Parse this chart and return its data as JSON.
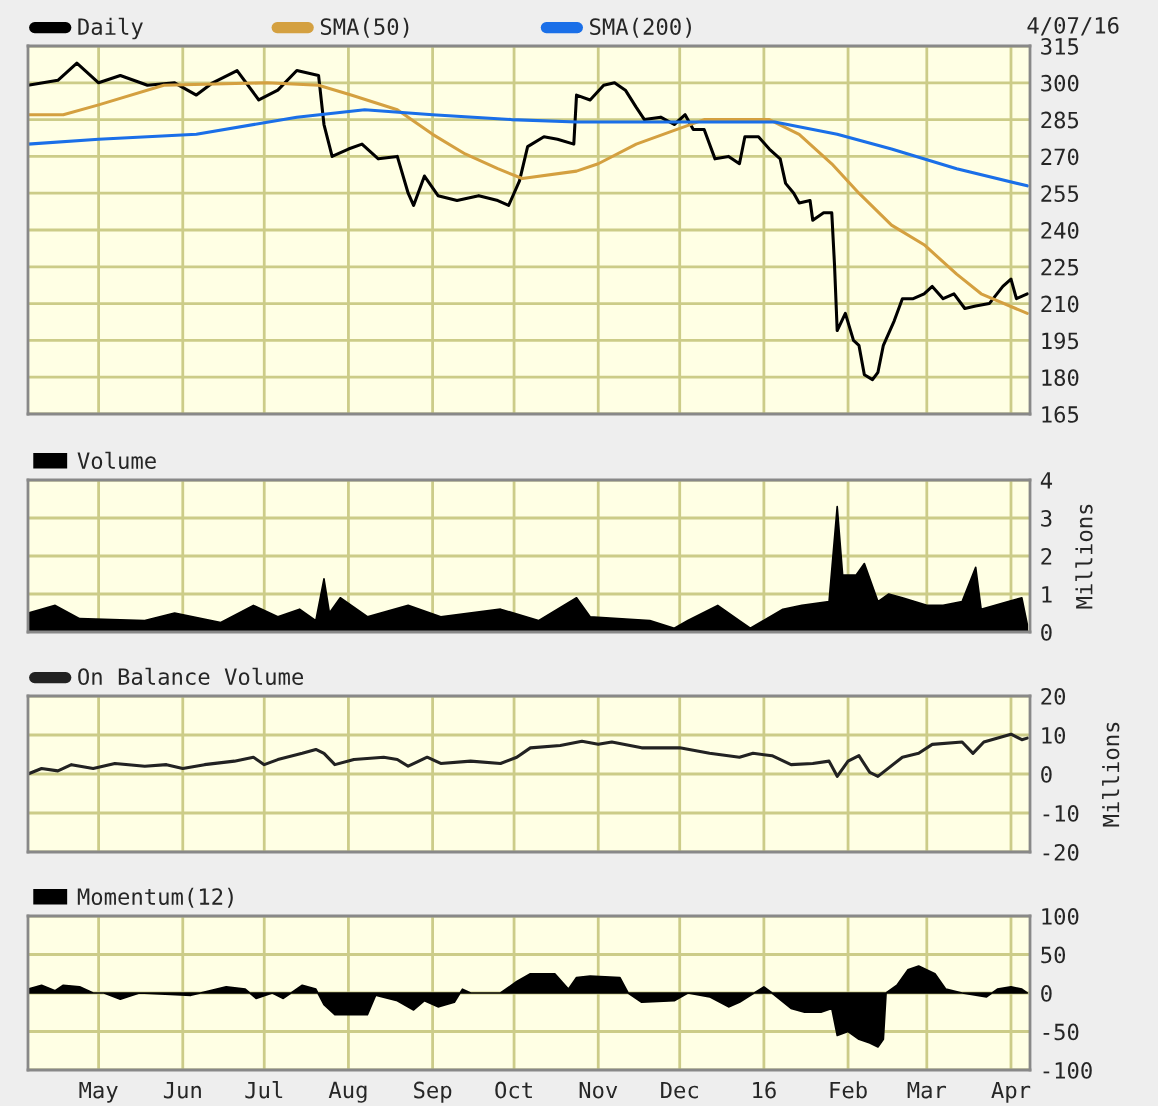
{
  "chart_data": [
    {
      "type": "line",
      "legend": "top left",
      "grid": true,
      "tick_labels": "y",
      "annotations": [
        "4/07/16"
      ],
      "xlim": [
        "2015-04-05",
        "2016-04-08"
      ],
      "xticks": [
        {
          "value": "2015-05-01",
          "label": null
        },
        {
          "value": "2015-06-01",
          "label": null
        },
        {
          "value": "2015-07-01",
          "label": null
        },
        {
          "value": "2015-08-01",
          "label": null
        },
        {
          "value": "2015-09-01",
          "label": null
        },
        {
          "value": "2015-10-01",
          "label": null
        },
        {
          "value": "2015-11-01",
          "label": null
        },
        {
          "value": "2015-12-01",
          "label": null
        },
        {
          "value": "2016-01-01",
          "label": null
        },
        {
          "value": "2016-02-01",
          "label": null
        },
        {
          "value": "2016-03-01",
          "label": null
        },
        {
          "value": "2016-04-01",
          "label": null
        }
      ],
      "ylim": [
        165,
        315
      ],
      "yticks": [
        165,
        180,
        195,
        210,
        225,
        240,
        255,
        270,
        285,
        300,
        315
      ],
      "series": [
        {
          "name": "Daily",
          "color": "#000000",
          "x": [
            "2015-04-05",
            "2015-04-16",
            "2015-04-23",
            "2015-05-01",
            "2015-05-09",
            "2015-05-19",
            "2015-05-29",
            "2015-06-06",
            "2015-06-12",
            "2015-06-21",
            "2015-06-29",
            "2015-07-06",
            "2015-07-13",
            "2015-07-21",
            "2015-07-23",
            "2015-07-26",
            "2015-08-01",
            "2015-08-06",
            "2015-08-12",
            "2015-08-19",
            "2015-08-23",
            "2015-08-25",
            "2015-08-29",
            "2015-09-03",
            "2015-09-10",
            "2015-09-18",
            "2015-09-25",
            "2015-09-29",
            "2015-10-03",
            "2015-10-06",
            "2015-10-12",
            "2015-10-17",
            "2015-10-23",
            "2015-10-24",
            "2015-10-29",
            "2015-11-03",
            "2015-11-07",
            "2015-11-11",
            "2015-11-15",
            "2015-11-18",
            "2015-11-24",
            "2015-11-29",
            "2015-12-03",
            "2015-12-06",
            "2015-12-10",
            "2015-12-14",
            "2015-12-19",
            "2015-12-23",
            "2015-12-25",
            "2015-12-30",
            "2016-01-03",
            "2016-01-07",
            "2016-01-09",
            "2016-01-12",
            "2016-01-14",
            "2016-01-18",
            "2016-01-19",
            "2016-01-23",
            "2016-01-26",
            "2016-01-27",
            "2016-01-28",
            "2016-01-31",
            "2016-02-03",
            "2016-02-05",
            "2016-02-07",
            "2016-02-10",
            "2016-02-12",
            "2016-02-14",
            "2016-02-18",
            "2016-02-21",
            "2016-02-25",
            "2016-02-29",
            "2016-03-03",
            "2016-03-07",
            "2016-03-11",
            "2016-03-15",
            "2016-03-19",
            "2016-03-24",
            "2016-03-29",
            "2016-04-01",
            "2016-04-03",
            "2016-04-07"
          ],
          "values": [
            299,
            301,
            308,
            300,
            303,
            299,
            300,
            295,
            300,
            305,
            293,
            297,
            305,
            303,
            283,
            270,
            273,
            275,
            269,
            270,
            255,
            250,
            262,
            254,
            252,
            254,
            252,
            250,
            260,
            274,
            278,
            277,
            275,
            295,
            293,
            299,
            300,
            297,
            290,
            285,
            286,
            283,
            287,
            281,
            281,
            269,
            270,
            267,
            278,
            278,
            273,
            269,
            259,
            255,
            251,
            252,
            244,
            247,
            247,
            226,
            199,
            206,
            195,
            193,
            181,
            179,
            182,
            193,
            203,
            212,
            212,
            214,
            217,
            212,
            214,
            208,
            209,
            210,
            217,
            220,
            212,
            214
          ]
        },
        {
          "name": "SMA(50)",
          "color": "#d4a040",
          "x": [
            "2015-04-05",
            "2015-04-18",
            "2015-05-01",
            "2015-05-25",
            "2015-07-02",
            "2015-07-21",
            "2015-08-02",
            "2015-08-19",
            "2015-09-01",
            "2015-09-13",
            "2015-09-25",
            "2015-10-04",
            "2015-10-24",
            "2015-11-01",
            "2015-11-15",
            "2015-11-30",
            "2015-12-10",
            "2015-12-21",
            "2016-01-03",
            "2016-01-14",
            "2016-01-26",
            "2016-02-05",
            "2016-02-17",
            "2016-02-29",
            "2016-03-12",
            "2016-03-21",
            "2016-04-07"
          ],
          "values": [
            287,
            287,
            291,
            299,
            300,
            299,
            295,
            289,
            279,
            271,
            265,
            261,
            264,
            267,
            275,
            281,
            285,
            285,
            285,
            279,
            267,
            255,
            242,
            234,
            222,
            214,
            206
          ]
        },
        {
          "name": "SMA(200)",
          "color": "#1a6fe8",
          "x": [
            "2015-04-05",
            "2015-05-01",
            "2015-06-06",
            "2015-07-13",
            "2015-08-07",
            "2015-09-01",
            "2015-09-30",
            "2015-10-24",
            "2016-01-05",
            "2016-01-28",
            "2016-02-17",
            "2016-03-12",
            "2016-04-07"
          ],
          "values": [
            275,
            277,
            279,
            286,
            289,
            287,
            285,
            284,
            284,
            279,
            273,
            265,
            258
          ]
        }
      ]
    },
    {
      "type": "area",
      "legend": "top left",
      "grid": true,
      "tick_labels": "y",
      "ylabel": "Millions",
      "xlim": [
        "2015-04-05",
        "2016-04-08"
      ],
      "xticks": [
        {
          "value": "2015-05-01",
          "label": null
        },
        {
          "value": "2015-06-01",
          "label": null
        },
        {
          "value": "2015-07-01",
          "label": null
        },
        {
          "value": "2015-08-01",
          "label": null
        },
        {
          "value": "2015-09-01",
          "label": null
        },
        {
          "value": "2015-10-01",
          "label": null
        },
        {
          "value": "2015-11-01",
          "label": null
        },
        {
          "value": "2015-12-01",
          "label": null
        },
        {
          "value": "2016-01-01",
          "label": null
        },
        {
          "value": "2016-02-01",
          "label": null
        },
        {
          "value": "2016-03-01",
          "label": null
        },
        {
          "value": "2016-04-01",
          "label": null
        }
      ],
      "ylim": [
        0,
        4
      ],
      "yticks": [
        0,
        1,
        2,
        3,
        4
      ],
      "series": [
        {
          "name": "Volume",
          "color": "#000000",
          "x": [
            "2015-04-05",
            "2015-04-15",
            "2015-04-24",
            "2015-05-18",
            "2015-05-29",
            "2015-06-15",
            "2015-06-27",
            "2015-07-06",
            "2015-07-14",
            "2015-07-20",
            "2015-07-23",
            "2015-07-25",
            "2015-07-29",
            "2015-08-08",
            "2015-08-23",
            "2015-09-04",
            "2015-09-26",
            "2015-10-10",
            "2015-10-24",
            "2015-10-29",
            "2015-11-20",
            "2015-11-29",
            "2015-12-04",
            "2015-12-15",
            "2015-12-23",
            "2015-12-27",
            "2016-01-08",
            "2016-01-15",
            "2016-01-25",
            "2016-01-28",
            "2016-01-30",
            "2016-02-04",
            "2016-02-07",
            "2016-02-12",
            "2016-02-16",
            "2016-02-21",
            "2016-03-01",
            "2016-03-07",
            "2016-03-14",
            "2016-03-19",
            "2016-03-21",
            "2016-03-31",
            "2016-04-05",
            "2016-04-07"
          ],
          "values": [
            0.5,
            0.7,
            0.35,
            0.3,
            0.5,
            0.25,
            0.7,
            0.4,
            0.6,
            0.3,
            1.4,
            0.5,
            0.9,
            0.4,
            0.7,
            0.4,
            0.6,
            0.3,
            0.9,
            0.4,
            0.3,
            0.1,
            0.3,
            0.7,
            0.3,
            0.1,
            0.6,
            0.7,
            0.8,
            3.3,
            1.5,
            1.5,
            1.8,
            0.8,
            1.0,
            0.9,
            0.7,
            0.7,
            0.8,
            1.7,
            0.6,
            0.8,
            0.9,
            0.2
          ]
        }
      ]
    },
    {
      "type": "line",
      "legend": "top left",
      "grid": true,
      "tick_labels": "y",
      "ylabel": "Millions",
      "xlim": [
        "2015-04-05",
        "2016-04-08"
      ],
      "xticks": [
        {
          "value": "2015-05-01",
          "label": null
        },
        {
          "value": "2015-06-01",
          "label": null
        },
        {
          "value": "2015-07-01",
          "label": null
        },
        {
          "value": "2015-08-01",
          "label": null
        },
        {
          "value": "2015-09-01",
          "label": null
        },
        {
          "value": "2015-10-01",
          "label": null
        },
        {
          "value": "2015-11-01",
          "label": null
        },
        {
          "value": "2015-12-01",
          "label": null
        },
        {
          "value": "2016-01-01",
          "label": null
        },
        {
          "value": "2016-02-01",
          "label": null
        },
        {
          "value": "2016-03-01",
          "label": null
        },
        {
          "value": "2016-04-01",
          "label": null
        }
      ],
      "ylim": [
        -20,
        20
      ],
      "yticks": [
        -20,
        -10,
        0,
        10,
        20
      ],
      "series": [
        {
          "name": "On Balance Volume",
          "color": "#222222",
          "x": [
            "2015-04-05",
            "2015-04-10",
            "2015-04-16",
            "2015-04-21",
            "2015-04-29",
            "2015-05-07",
            "2015-05-18",
            "2015-05-26",
            "2015-06-01",
            "2015-06-09",
            "2015-06-20",
            "2015-06-27",
            "2015-07-01",
            "2015-07-06",
            "2015-07-15",
            "2015-07-20",
            "2015-07-23",
            "2015-07-27",
            "2015-08-03",
            "2015-08-14",
            "2015-08-19",
            "2015-08-23",
            "2015-08-30",
            "2015-09-04",
            "2015-09-15",
            "2015-09-26",
            "2015-10-02",
            "2015-10-07",
            "2015-10-18",
            "2015-10-26",
            "2015-11-01",
            "2015-11-06",
            "2015-11-17",
            "2015-12-01",
            "2015-12-12",
            "2015-12-23",
            "2015-12-28",
            "2016-01-04",
            "2016-01-11",
            "2016-01-19",
            "2016-01-25",
            "2016-01-28",
            "2016-02-01",
            "2016-02-05",
            "2016-02-09",
            "2016-02-12",
            "2016-02-21",
            "2016-02-27",
            "2016-03-03",
            "2016-03-14",
            "2016-03-18",
            "2016-03-22",
            "2016-04-01",
            "2016-04-05",
            "2016-04-07"
          ],
          "values": [
            0,
            1.4,
            0.8,
            2.4,
            1.4,
            2.7,
            2,
            2.4,
            1.4,
            2.4,
            3.3,
            4.3,
            2.4,
            3.7,
            5.3,
            6.3,
            5.3,
            2.4,
            3.7,
            4.3,
            3.7,
            2,
            4.3,
            2.7,
            3.3,
            2.7,
            4.3,
            6.7,
            7.3,
            8.4,
            7.6,
            8.2,
            6.7,
            6.7,
            5.3,
            4.3,
            5.3,
            4.7,
            2.4,
            2.7,
            3.3,
            -0.6,
            3.3,
            4.7,
            0.4,
            -0.6,
            4.3,
            5.3,
            7.6,
            8.2,
            5.3,
            8.2,
            10.2,
            8.8,
            9.2
          ]
        }
      ]
    },
    {
      "type": "area",
      "legend": "top left",
      "grid": true,
      "xlim": [
        "2015-04-05",
        "2016-04-08"
      ],
      "xticks": [
        {
          "value": "2015-05-01",
          "label": "May"
        },
        {
          "value": "2015-06-01",
          "label": "Jun"
        },
        {
          "value": "2015-07-01",
          "label": "Jul"
        },
        {
          "value": "2015-08-01",
          "label": "Aug"
        },
        {
          "value": "2015-09-01",
          "label": "Sep"
        },
        {
          "value": "2015-10-01",
          "label": "Oct"
        },
        {
          "value": "2015-11-01",
          "label": "Nov"
        },
        {
          "value": "2015-12-01",
          "label": "Dec"
        },
        {
          "value": "2016-01-01",
          "label": "16"
        },
        {
          "value": "2016-02-01",
          "label": "Feb"
        },
        {
          "value": "2016-03-01",
          "label": "Mar"
        },
        {
          "value": "2016-04-01",
          "label": "Apr"
        }
      ],
      "ylim": [
        -100,
        100
      ],
      "yticks": [
        -100,
        -50,
        0,
        50,
        100
      ],
      "series": [
        {
          "name": "Momentum(12)",
          "color": "#000000",
          "x": [
            "2015-04-05",
            "2015-04-10",
            "2015-04-15",
            "2015-04-18",
            "2015-04-24",
            "2015-04-29",
            "2015-05-03",
            "2015-05-09",
            "2015-05-16",
            "2015-06-04",
            "2015-06-17",
            "2015-06-24",
            "2015-06-28",
            "2015-07-04",
            "2015-07-08",
            "2015-07-15",
            "2015-07-20",
            "2015-07-23",
            "2015-07-27",
            "2015-08-03",
            "2015-08-08",
            "2015-08-11",
            "2015-08-19",
            "2015-08-25",
            "2015-08-29",
            "2015-09-03",
            "2015-09-09",
            "2015-09-12",
            "2015-09-15",
            "2015-09-26",
            "2015-10-02",
            "2015-10-07",
            "2015-10-16",
            "2015-10-21",
            "2015-10-24",
            "2015-10-29",
            "2015-11-09",
            "2015-11-12",
            "2015-11-17",
            "2015-11-29",
            "2015-12-04",
            "2015-12-12",
            "2015-12-19",
            "2015-12-23",
            "2016-01-01",
            "2016-01-04",
            "2016-01-11",
            "2016-01-16",
            "2016-01-22",
            "2016-01-26",
            "2016-01-28",
            "2016-02-01",
            "2016-02-05",
            "2016-02-09",
            "2016-02-12",
            "2016-02-14",
            "2016-02-15",
            "2016-02-19",
            "2016-02-23",
            "2016-02-27",
            "2016-03-04",
            "2016-03-08",
            "2016-03-14",
            "2016-03-23",
            "2016-03-27",
            "2016-04-01",
            "2016-04-05",
            "2016-04-07"
          ],
          "values": [
            5,
            10,
            3,
            10,
            8,
            0,
            0,
            -8,
            0,
            -3,
            8,
            5,
            -7,
            0,
            -7,
            10,
            5,
            -15,
            -28,
            -28,
            -28,
            -3,
            -10,
            -22,
            -10,
            -18,
            -12,
            5,
            0,
            0,
            15,
            25,
            25,
            5,
            20,
            22,
            20,
            0,
            -12,
            -10,
            0,
            -5,
            -18,
            -12,
            8,
            0,
            -20,
            -25,
            -25,
            -20,
            -55,
            -50,
            -60,
            -65,
            -70,
            -60,
            0,
            10,
            30,
            35,
            25,
            5,
            0,
            -5,
            5,
            8,
            5,
            0
          ]
        }
      ]
    }
  ]
}
